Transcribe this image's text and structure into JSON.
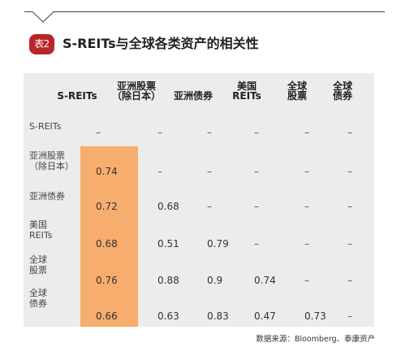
{
  "badge": "表2",
  "title": "S-REITs与全球各类资产的相关性",
  "columns": [
    "S-REITs",
    "亚洲股票\n（除日本）",
    "亚洲债券",
    "美国\nREITs",
    "全球\n股票",
    "全球\n债券"
  ],
  "rows": [
    {
      "label": "S-REITs",
      "cells": [
        "–",
        "–",
        "–",
        "–",
        "–",
        "–"
      ]
    },
    {
      "label": "亚洲股票\n（除日本）",
      "cells": [
        "0.74",
        "–",
        "–",
        "–",
        "–",
        "–"
      ]
    },
    {
      "label": "亚洲债券",
      "cells": [
        "0.72",
        "0.68",
        "–",
        "–",
        "–",
        "–"
      ]
    },
    {
      "label": "美国\nREITs",
      "cells": [
        "0.68",
        "0.51",
        "0.79",
        "–",
        "–",
        "–"
      ]
    },
    {
      "label": "全球\n股票",
      "cells": [
        "0.76",
        "0.88",
        "0.9",
        "0.74",
        "–",
        "–"
      ]
    },
    {
      "label": "全球\n债券",
      "cells": [
        "0.66",
        "0.63",
        "0.83",
        "0.47",
        "0.73",
        "–"
      ]
    }
  ],
  "highlight_color": "#f6ad6e",
  "source": "数据来源：Bloomberg、泰康资产"
}
